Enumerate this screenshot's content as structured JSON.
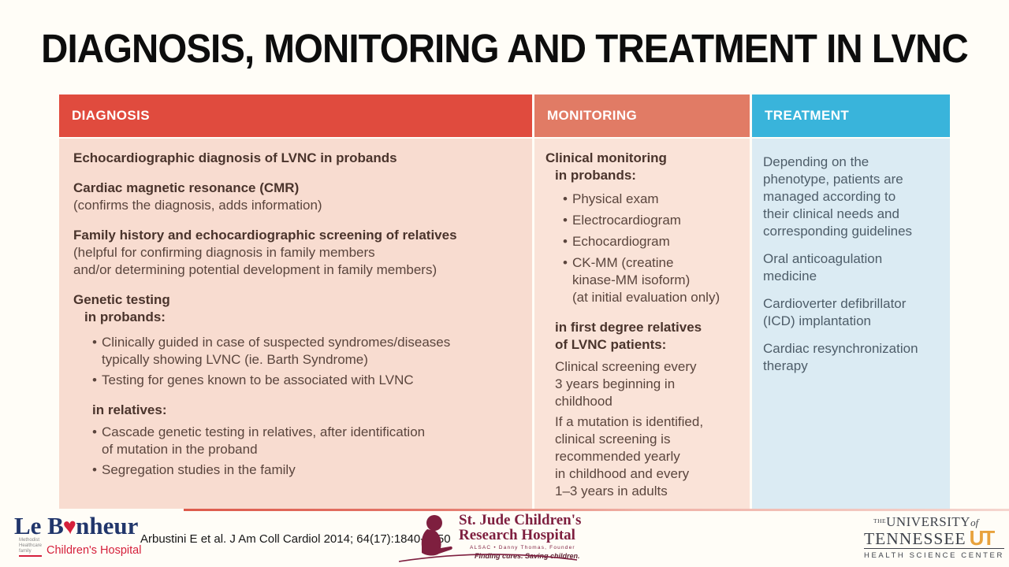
{
  "slide_title": "DIAGNOSIS, MONITORING AND TREATMENT IN LVNC",
  "chars": {
    "bullet": "•"
  },
  "colors": {
    "bg": "#fffdf7",
    "red": "#e04b3e",
    "salmon": "#e17b65",
    "blue": "#39b4db",
    "pink1": "#f8dcd0",
    "pink2": "#fae3d8",
    "lightblue": "#dbebf3",
    "tbrown": "#5a453d",
    "tbrownbold": "#4a342c",
    "tblue": "#4e5d69",
    "lbnavy": "#21366b",
    "lbred": "#d5203b",
    "stjude": "#7e1f3f",
    "utgray": "#3f434b",
    "utorange": "#e8a23c"
  },
  "table": {
    "diagnosis": {
      "header": "DIAGNOSIS",
      "echo": [
        "Echocardiographic diagnosis of LVNC in probands"
      ],
      "cmr_bold": [
        "Cardiac magnetic resonance (CMR)"
      ],
      "cmr_note": [
        "(confirms the diagnosis, adds information)"
      ],
      "family_bold": [
        "Family history and echocardiographic screening of relatives"
      ],
      "family_note": [
        "(helpful for confirming diagnosis in family members",
        "and/or determining potential development in family members)"
      ],
      "genetic_bold": [
        "Genetic testing"
      ],
      "in_probands": [
        "in probands:"
      ],
      "bullet_clinically": [
        "Clinically guided in case of suspected syndromes/diseases",
        "typically showing LVNC (ie. Barth Syndrome)"
      ],
      "bullet_testing": [
        "Testing for genes known to be associated with LVNC"
      ],
      "in_relatives": [
        "in relatives:"
      ],
      "bullet_cascade": [
        "Cascade genetic testing in relatives, after identification",
        "of mutation in the proband"
      ],
      "bullet_segregation": [
        "Segregation studies in the family"
      ]
    },
    "monitoring": {
      "header": "MONITORING",
      "clinical_bold": [
        "Clinical monitoring"
      ],
      "in_probands": [
        "in probands:"
      ],
      "bullet_physical": [
        "Physical exam"
      ],
      "bullet_ecg": [
        "Electrocardiogram"
      ],
      "bullet_echo": [
        "Echocardiogram"
      ],
      "bullet_ckmm": [
        "CK-MM (creatine",
        "kinase-MM isoform)",
        "(at initial evaluation only)"
      ],
      "first_degree_bold": [
        "in first degree relatives",
        "of LVNC patients:"
      ],
      "screening": [
        "Clinical screening every",
        "3 years beginning in",
        "childhood"
      ],
      "mutation": [
        "If a mutation is identified,",
        "clinical screening is",
        "recommended yearly",
        "in childhood and every",
        "1–3 years in adults"
      ]
    },
    "treatment": {
      "header": "TREATMENT",
      "p1": [
        "Depending on the",
        "phenotype, patients are",
        "managed according to",
        "their clinical needs and",
        "corresponding guidelines"
      ],
      "p2": [
        "Oral anticoagulation",
        "medicine"
      ],
      "p3": [
        "Cardioverter defibrillator",
        "(ICD) implantation"
      ],
      "p4": [
        "Cardiac resynchronization",
        "therapy"
      ]
    }
  },
  "footer": {
    "citation": "Arbustini E et al. J Am Coll Cardiol 2014; 64(17):1840-1850",
    "lebonheur": {
      "name_pre": "Le B",
      "heart": "♥",
      "name_post": "nheur",
      "tagline": [
        "Methodist Healthcare",
        "family"
      ],
      "sub": "Children's Hospital"
    },
    "stjude": {
      "line1": "St. Jude Children's",
      "line2": "Research Hospital",
      "line3": "ALSAC • Danny Thomas, Founder",
      "line4": "Finding cures. Saving children."
    },
    "ut": {
      "the": "THE",
      "university": "UNIVERSITY",
      "of": "of",
      "tennessee": "TENNESSEE",
      "mark": "UT",
      "line3": "HEALTH SCIENCE CENTER"
    }
  }
}
